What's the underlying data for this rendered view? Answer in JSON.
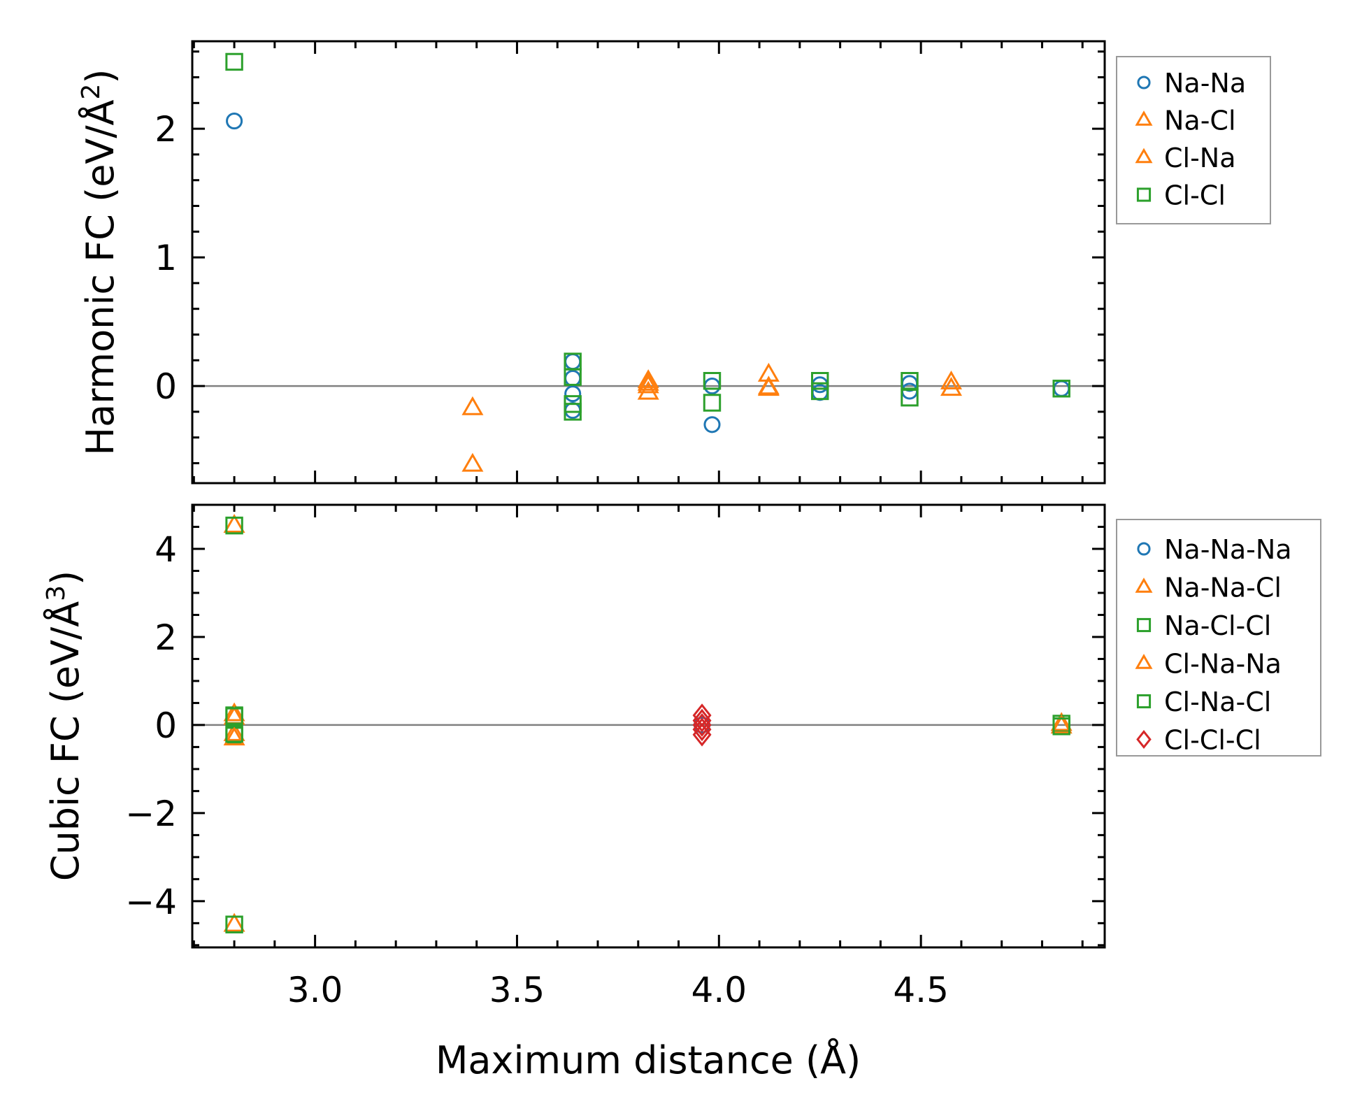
{
  "chart_data": [
    {
      "type": "scatter",
      "panel": "top",
      "title": "",
      "xlabel": "Maximum distance (Å)",
      "ylabel": "Harmonic FC (eV/Å",
      "ylabel_sup": "2",
      "ylabel_close": ")",
      "xlim": [
        2.696,
        4.955
      ],
      "ylim": [
        -0.755,
        2.68
      ],
      "xticks": [
        3.0,
        3.5,
        4.0,
        4.5
      ],
      "xtick_labels": [
        "3.0",
        "3.5",
        "4.0",
        "4.5"
      ],
      "yticks": [
        0,
        1,
        2
      ],
      "ytick_labels": [
        "0",
        "1",
        "2"
      ],
      "reference_line": 0,
      "grid": false,
      "legend_position": "outside-right-top",
      "series": [
        {
          "name": "Na-Na",
          "marker": "circle",
          "color": "#1f77b4",
          "points": [
            [
              2.8,
              2.06
            ],
            [
              3.638,
              0.19
            ],
            [
              3.638,
              0.06
            ],
            [
              3.638,
              -0.06
            ],
            [
              3.638,
              -0.19
            ],
            [
              3.983,
              0.0
            ],
            [
              3.983,
              -0.3
            ],
            [
              4.25,
              0.01
            ],
            [
              4.25,
              -0.05
            ],
            [
              4.472,
              0.02
            ],
            [
              4.472,
              -0.04
            ],
            [
              4.848,
              -0.02
            ]
          ]
        },
        {
          "name": "Na-Cl",
          "marker": "triangle",
          "color": "#ff7f0e",
          "points": [
            [
              3.39,
              -0.17
            ],
            [
              3.825,
              0.04
            ],
            [
              3.825,
              0.0
            ],
            [
              4.123,
              0.09
            ],
            [
              4.123,
              -0.02
            ],
            [
              4.575,
              0.03
            ]
          ]
        },
        {
          "name": "Cl-Na",
          "marker": "triangle",
          "color": "#ff7f0e",
          "points": [
            [
              3.39,
              -0.61
            ],
            [
              3.825,
              -0.05
            ],
            [
              3.825,
              0.02
            ],
            [
              4.123,
              -0.01
            ],
            [
              4.575,
              -0.02
            ]
          ]
        },
        {
          "name": "Cl-Cl",
          "marker": "square",
          "color": "#2ca02c",
          "points": [
            [
              2.8,
              2.52
            ],
            [
              3.638,
              0.19
            ],
            [
              3.638,
              0.07
            ],
            [
              3.638,
              -0.14
            ],
            [
              3.638,
              -0.2
            ],
            [
              3.983,
              0.04
            ],
            [
              3.983,
              -0.13
            ],
            [
              4.25,
              0.04
            ],
            [
              4.25,
              -0.04
            ],
            [
              4.472,
              0.04
            ],
            [
              4.472,
              -0.09
            ],
            [
              4.848,
              -0.02
            ]
          ]
        }
      ]
    },
    {
      "type": "scatter",
      "panel": "bottom",
      "title": "",
      "xlabel": "Maximum distance (Å)",
      "ylabel": "Cubic FC (eV/Å",
      "ylabel_sup": "3",
      "ylabel_close": ")",
      "xlim": [
        2.696,
        4.955
      ],
      "ylim": [
        -5.05,
        5.0
      ],
      "xticks": [
        3.0,
        3.5,
        4.0,
        4.5
      ],
      "xtick_labels": [
        "3.0",
        "3.5",
        "4.0",
        "4.5"
      ],
      "yticks": [
        -4,
        -2,
        0,
        2,
        4
      ],
      "ytick_labels": [
        "−4",
        "−2",
        "0",
        "2",
        "4"
      ],
      "reference_line": 0,
      "grid": false,
      "legend_position": "outside-right-top",
      "series": [
        {
          "name": "Na-Na-Na",
          "marker": "circle",
          "color": "#1f77b4",
          "points": [
            [
              3.958,
              0.0
            ]
          ]
        },
        {
          "name": "Na-Na-Cl",
          "marker": "triangle",
          "color": "#ff7f0e",
          "points": [
            [
              2.8,
              4.53
            ],
            [
              2.8,
              0.25
            ],
            [
              2.8,
              -0.2
            ],
            [
              2.8,
              -4.53
            ],
            [
              4.848,
              0.03
            ]
          ]
        },
        {
          "name": "Na-Cl-Cl",
          "marker": "square",
          "color": "#2ca02c",
          "points": [
            [
              2.8,
              4.53
            ],
            [
              2.8,
              0.22
            ],
            [
              2.8,
              -0.24
            ],
            [
              2.8,
              -4.53
            ],
            [
              4.848,
              0.03
            ]
          ]
        },
        {
          "name": "Cl-Na-Na",
          "marker": "triangle",
          "color": "#ff7f0e",
          "points": [
            [
              2.8,
              0.17
            ],
            [
              2.8,
              -0.3
            ],
            [
              4.848,
              -0.03
            ]
          ]
        },
        {
          "name": "Cl-Na-Cl",
          "marker": "square",
          "color": "#2ca02c",
          "points": [
            [
              2.8,
              0.2
            ],
            [
              2.8,
              -0.2
            ],
            [
              4.848,
              -0.03
            ]
          ]
        },
        {
          "name": "Cl-Cl-Cl",
          "marker": "diamond",
          "color": "#d62728",
          "points": [
            [
              3.958,
              0.22
            ],
            [
              3.958,
              0.1
            ],
            [
              3.958,
              0.0
            ],
            [
              3.958,
              -0.1
            ],
            [
              3.958,
              -0.22
            ]
          ]
        }
      ]
    }
  ]
}
